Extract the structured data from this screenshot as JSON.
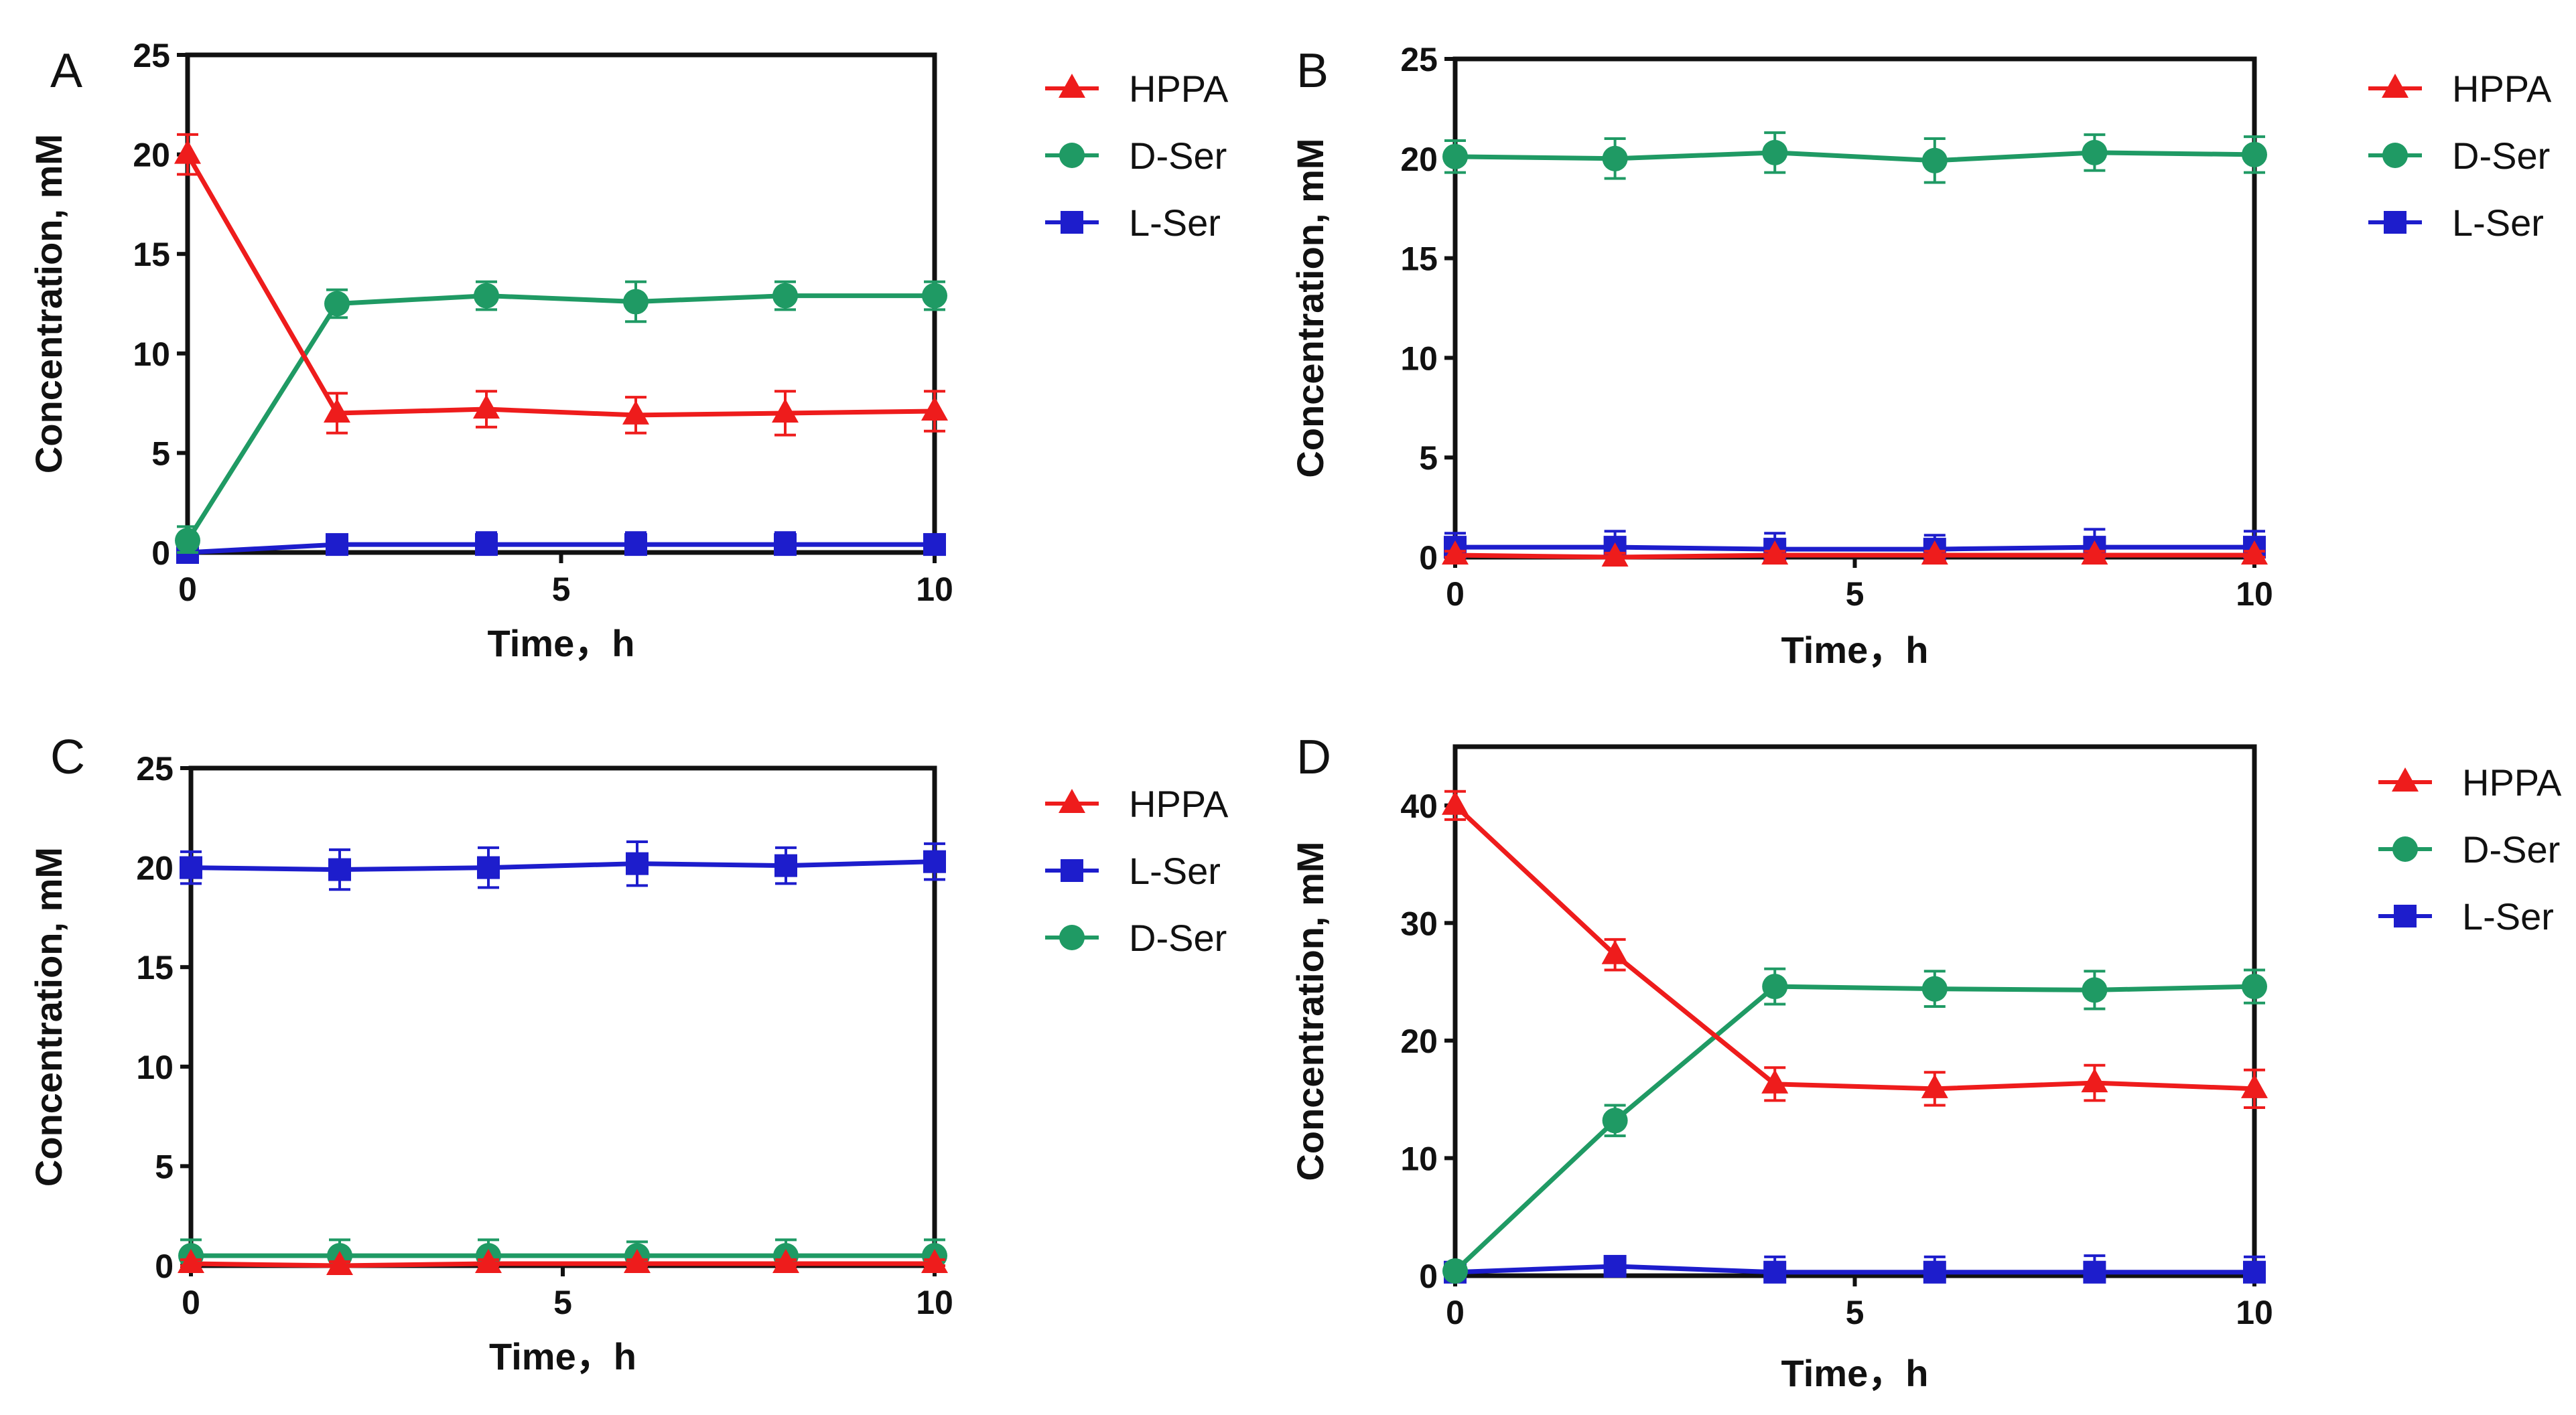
{
  "figure": {
    "colors": {
      "HPPA": "#ee1c1c",
      "D-Ser": "#1f9a64",
      "L-Ser": "#1d1dcc",
      "axis": "#111111"
    }
  },
  "chart_data": [
    {
      "panel": "A",
      "type": "line",
      "xlabel": "Time，h",
      "ylabel": "Concentration, mM",
      "xlim": [
        0,
        10
      ],
      "ylim": [
        0,
        25
      ],
      "xticks": [
        "0",
        "5",
        "10"
      ],
      "yticks": [
        "0",
        "5",
        "10",
        "15",
        "20",
        "25"
      ],
      "x": [
        0,
        2,
        4,
        6,
        8,
        10
      ],
      "legend": [
        "HPPA",
        "D-Ser",
        "L-Ser"
      ],
      "series": [
        {
          "name": "HPPA",
          "marker": "triangle",
          "values": [
            20.0,
            7.0,
            7.2,
            6.9,
            7.0,
            7.1
          ],
          "errors": [
            1.0,
            1.0,
            0.9,
            0.9,
            1.1,
            1.0
          ]
        },
        {
          "name": "D-Ser",
          "marker": "circle",
          "values": [
            0.6,
            12.5,
            12.9,
            12.6,
            12.9,
            12.9
          ],
          "errors": [
            0.7,
            0.7,
            0.7,
            1.0,
            0.7,
            0.7
          ]
        },
        {
          "name": "L-Ser",
          "marker": "square",
          "values": [
            0.0,
            0.4,
            0.4,
            0.4,
            0.4,
            0.4
          ],
          "errors": [
            0.2,
            0.4,
            0.6,
            0.6,
            0.6,
            0.5
          ]
        }
      ]
    },
    {
      "panel": "B",
      "type": "line",
      "xlabel": "Time，h",
      "ylabel": "Concentration, mM",
      "xlim": [
        0,
        10
      ],
      "ylim": [
        0,
        25
      ],
      "xticks": [
        "0",
        "5",
        "10"
      ],
      "yticks": [
        "0",
        "5",
        "10",
        "15",
        "20",
        "25"
      ],
      "x": [
        0,
        2,
        4,
        6,
        8,
        10
      ],
      "legend": [
        "HPPA",
        "D-Ser",
        "L-Ser"
      ],
      "series": [
        {
          "name": "HPPA",
          "marker": "triangle",
          "values": [
            0.1,
            0.0,
            0.1,
            0.1,
            0.1,
            0.1
          ],
          "errors": [
            0.2,
            0.2,
            0.2,
            0.2,
            0.2,
            0.2
          ]
        },
        {
          "name": "D-Ser",
          "marker": "circle",
          "values": [
            20.1,
            20.0,
            20.3,
            19.9,
            20.3,
            20.2
          ],
          "errors": [
            0.8,
            1.0,
            1.0,
            1.1,
            0.9,
            0.9
          ]
        },
        {
          "name": "L-Ser",
          "marker": "square",
          "values": [
            0.5,
            0.5,
            0.4,
            0.4,
            0.5,
            0.5
          ],
          "errors": [
            0.7,
            0.8,
            0.8,
            0.7,
            0.9,
            0.8
          ]
        }
      ]
    },
    {
      "panel": "C",
      "type": "line",
      "xlabel": "Time，h",
      "ylabel": "Concentration, mM",
      "xlim": [
        0,
        10
      ],
      "ylim": [
        0,
        25
      ],
      "xticks": [
        "0",
        "5",
        "10"
      ],
      "yticks": [
        "0",
        "5",
        "10",
        "15",
        "20",
        "25"
      ],
      "x": [
        0,
        2,
        4,
        6,
        8,
        10
      ],
      "legend": [
        "HPPA",
        "L-Ser",
        "D-Ser"
      ],
      "series": [
        {
          "name": "HPPA",
          "marker": "triangle",
          "values": [
            0.1,
            0.0,
            0.1,
            0.1,
            0.1,
            0.1
          ],
          "errors": [
            0.2,
            0.2,
            0.2,
            0.2,
            0.2,
            0.2
          ]
        },
        {
          "name": "L-Ser",
          "marker": "square",
          "values": [
            20.0,
            19.9,
            20.0,
            20.2,
            20.1,
            20.3
          ],
          "errors": [
            0.8,
            1.0,
            1.0,
            1.1,
            0.9,
            0.9
          ]
        },
        {
          "name": "D-Ser",
          "marker": "circle",
          "values": [
            0.5,
            0.5,
            0.5,
            0.5,
            0.5,
            0.5
          ],
          "errors": [
            0.8,
            0.8,
            0.8,
            0.7,
            0.8,
            0.8
          ]
        }
      ]
    },
    {
      "panel": "D",
      "type": "line",
      "xlabel": "Time，h",
      "ylabel": "Concentration, mM",
      "xlim": [
        0,
        10
      ],
      "ylim": [
        0,
        45
      ],
      "xticks": [
        "0",
        "5",
        "10"
      ],
      "yticks": [
        "0",
        "10",
        "20",
        "30",
        "40"
      ],
      "x": [
        0,
        2,
        4,
        6,
        8,
        10
      ],
      "legend": [
        "HPPA",
        "D-Ser",
        "L-Ser"
      ],
      "series": [
        {
          "name": "HPPA",
          "marker": "triangle",
          "values": [
            40.0,
            27.3,
            16.3,
            15.9,
            16.4,
            15.9
          ],
          "errors": [
            1.2,
            1.3,
            1.4,
            1.4,
            1.5,
            1.6
          ]
        },
        {
          "name": "D-Ser",
          "marker": "circle",
          "values": [
            0.4,
            13.2,
            24.6,
            24.4,
            24.3,
            24.6
          ],
          "errors": [
            0.6,
            1.3,
            1.5,
            1.5,
            1.6,
            1.4
          ]
        },
        {
          "name": "L-Ser",
          "marker": "square",
          "values": [
            0.3,
            0.8,
            0.3,
            0.3,
            0.3,
            0.3
          ],
          "errors": [
            0.4,
            0.6,
            1.3,
            1.3,
            1.4,
            1.3
          ]
        }
      ]
    }
  ]
}
